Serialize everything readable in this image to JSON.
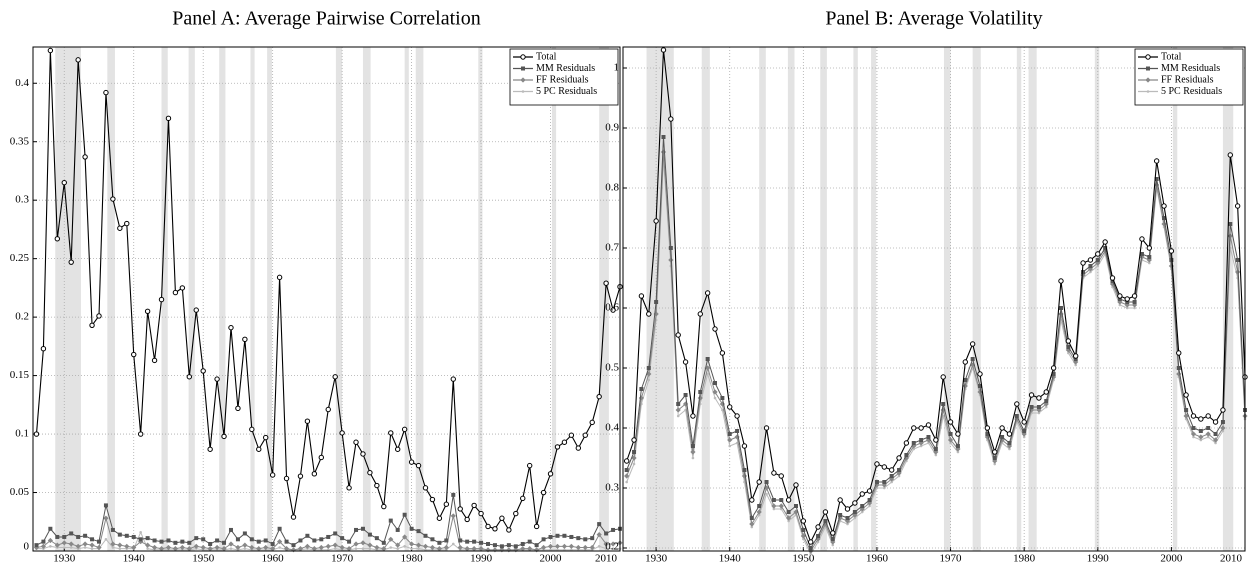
{
  "chart_data": [
    {
      "type": "line",
      "title": "Panel A: Average Pairwise Correlation",
      "x": [
        1926,
        1927,
        1928,
        1929,
        1930,
        1931,
        1932,
        1933,
        1934,
        1935,
        1936,
        1937,
        1938,
        1939,
        1940,
        1941,
        1942,
        1943,
        1944,
        1945,
        1946,
        1947,
        1948,
        1949,
        1950,
        1951,
        1952,
        1953,
        1954,
        1955,
        1956,
        1957,
        1958,
        1959,
        1960,
        1961,
        1962,
        1963,
        1964,
        1965,
        1966,
        1967,
        1968,
        1969,
        1970,
        1971,
        1972,
        1973,
        1974,
        1975,
        1976,
        1977,
        1978,
        1979,
        1980,
        1981,
        1982,
        1983,
        1984,
        1985,
        1986,
        1987,
        1988,
        1989,
        1990,
        1991,
        1992,
        1993,
        1994,
        1995,
        1996,
        1997,
        1998,
        1999,
        2000,
        2001,
        2002,
        2003,
        2004,
        2005,
        2006,
        2007,
        2008,
        2009,
        2010
      ],
      "xlim": [
        1925.5,
        2010
      ],
      "xticks": [
        1930,
        1940,
        1950,
        1960,
        1970,
        1980,
        1990,
        2000,
        2010
      ],
      "ylim": [
        0,
        0.431
      ],
      "yticks": [
        0,
        0.05,
        0.1,
        0.15,
        0.2,
        0.25,
        0.3,
        0.35,
        0.4
      ],
      "grid": true,
      "legend": "upper right",
      "recessions": [
        [
          1928.7,
          1932.4
        ],
        [
          1936.2,
          1937.3
        ],
        [
          1944,
          1944.9
        ],
        [
          1947.9,
          1948.8
        ],
        [
          1952.3,
          1953.2
        ],
        [
          1956.8,
          1957.4
        ],
        [
          1959.2,
          1959.9
        ],
        [
          1969.1,
          1970
        ],
        [
          1973,
          1974.1
        ],
        [
          1979,
          1979.6
        ],
        [
          1980.6,
          1981.7
        ],
        [
          1989.6,
          1990.2
        ],
        [
          2000.2,
          2000.8
        ],
        [
          2007,
          2008.4
        ]
      ],
      "series": [
        {
          "name": "Total",
          "color": "#000000",
          "marker": "circle",
          "values": [
            0.1,
            0.173,
            0.428,
            0.267,
            0.315,
            0.247,
            0.42,
            0.337,
            0.193,
            0.201,
            0.392,
            0.301,
            0.276,
            0.28,
            0.168,
            0.1,
            0.205,
            0.163,
            0.215,
            0.37,
            0.221,
            0.225,
            0.149,
            0.206,
            0.154,
            0.087,
            0.147,
            0.098,
            0.191,
            0.122,
            0.181,
            0.104,
            0.087,
            0.097,
            0.065,
            0.234,
            0.062,
            0.029,
            0.064,
            0.111,
            0.066,
            0.08,
            0.121,
            0.149,
            0.101,
            0.054,
            0.093,
            0.083,
            0.067,
            0.056,
            0.038,
            0.101,
            0.087,
            0.104,
            0.076,
            0.073,
            0.054,
            0.044,
            0.028,
            0.04,
            0.147,
            0.036,
            0.027,
            0.039,
            0.032,
            0.021,
            0.019,
            0.028,
            0.018,
            0.032,
            0.045,
            0.073,
            0.021,
            0.05,
            0.066,
            0.089,
            0.093,
            0.099,
            0.088,
            0.099,
            0.11,
            0.132,
            0.229,
            0.206,
            0.226
          ]
        },
        {
          "name": "MM Residuals",
          "color": "#555555",
          "marker": "square",
          "values": [
            0.005,
            0.008,
            0.019,
            0.012,
            0.012,
            0.015,
            0.012,
            0.013,
            0.01,
            0.008,
            0.039,
            0.018,
            0.014,
            0.013,
            0.012,
            0.01,
            0.011,
            0.009,
            0.008,
            0.009,
            0.007,
            0.008,
            0.007,
            0.011,
            0.01,
            0.006,
            0.009,
            0.007,
            0.018,
            0.01,
            0.015,
            0.01,
            0.008,
            0.009,
            0.006,
            0.019,
            0.008,
            0.005,
            0.009,
            0.013,
            0.009,
            0.01,
            0.012,
            0.015,
            0.011,
            0.008,
            0.018,
            0.019,
            0.014,
            0.011,
            0.007,
            0.026,
            0.018,
            0.031,
            0.019,
            0.017,
            0.013,
            0.01,
            0.007,
            0.009,
            0.048,
            0.009,
            0.008,
            0.008,
            0.007,
            0.006,
            0.005,
            0.004,
            0.005,
            0.004,
            0.006,
            0.008,
            0.005,
            0.01,
            0.012,
            0.013,
            0.013,
            0.012,
            0.011,
            0.01,
            0.011,
            0.023,
            0.015,
            0.018,
            0.019
          ]
        },
        {
          "name": "FF Residuals",
          "color": "#888888",
          "marker": "diamond",
          "values": [
            0.003,
            0.004,
            0.009,
            0.005,
            0.007,
            0.006,
            0.004,
            0.006,
            0.005,
            0.003,
            0.028,
            0.006,
            0.005,
            0.004,
            0.003,
            0.008,
            0.005,
            0.003,
            0.002,
            0.003,
            0.002,
            0.003,
            0.002,
            0.004,
            0.003,
            0.002,
            0.003,
            0.002,
            0.006,
            0.003,
            0.005,
            0.003,
            0.002,
            0.003,
            0.002,
            0.008,
            0.002,
            0.001,
            0.002,
            0.004,
            0.002,
            0.003,
            0.004,
            0.005,
            0.003,
            0.002,
            0.006,
            0.007,
            0.005,
            0.003,
            0.002,
            0.01,
            0.005,
            0.012,
            0.006,
            0.005,
            0.004,
            0.003,
            0.002,
            0.003,
            0.03,
            0.003,
            0.002,
            0.002,
            0.002,
            0.001,
            0.001,
            0.001,
            0.001,
            0.001,
            0.002,
            0.002,
            0.001,
            0.003,
            0.004,
            0.004,
            0.004,
            0.004,
            0.003,
            0.003,
            0.003,
            0.014,
            0.006,
            0.006,
            0.007
          ]
        },
        {
          "name": "5 PC Residuals",
          "color": "#bbbbbb",
          "marker": "point",
          "values": [
            0.002,
            0.002,
            0.004,
            0.003,
            0.003,
            0.003,
            0.002,
            0.003,
            0.002,
            0.002,
            0.01,
            0.003,
            0.002,
            0.002,
            0.002,
            0.016,
            0.002,
            0.001,
            0.001,
            0.001,
            0.001,
            0.001,
            0.001,
            0.002,
            0.001,
            0.001,
            0.001,
            0.001,
            0.002,
            0.001,
            0.002,
            0.001,
            0.001,
            0.001,
            0.001,
            0.003,
            0.001,
            0.001,
            0.001,
            0.002,
            0.001,
            0.001,
            0.001,
            0.002,
            0.001,
            0.001,
            0.002,
            0.002,
            0.002,
            0.001,
            0.001,
            0.003,
            0.002,
            0.004,
            0.002,
            0.002,
            0.001,
            0.001,
            0.001,
            0.001,
            0.006,
            0.001,
            0.001,
            0.001,
            0.001,
            0.001,
            0.001,
            0.001,
            0.001,
            0.001,
            0.001,
            0.001,
            0.001,
            0.001,
            0.001,
            0.001,
            0.001,
            0.001,
            0.001,
            0.001,
            0.001,
            0.004,
            0.002,
            0.002,
            0.002
          ]
        }
      ]
    },
    {
      "type": "line",
      "title": "Panel B: Average Volatility",
      "x": [
        1926,
        1927,
        1928,
        1929,
        1930,
        1931,
        1932,
        1933,
        1934,
        1935,
        1936,
        1937,
        1938,
        1939,
        1940,
        1941,
        1942,
        1943,
        1944,
        1945,
        1946,
        1947,
        1948,
        1949,
        1950,
        1951,
        1952,
        1953,
        1954,
        1955,
        1956,
        1957,
        1958,
        1959,
        1960,
        1961,
        1962,
        1963,
        1964,
        1965,
        1966,
        1967,
        1968,
        1969,
        1970,
        1971,
        1972,
        1973,
        1974,
        1975,
        1976,
        1977,
        1978,
        1979,
        1980,
        1981,
        1982,
        1983,
        1984,
        1985,
        1986,
        1987,
        1988,
        1989,
        1990,
        1991,
        1992,
        1993,
        1994,
        1995,
        1996,
        1997,
        1998,
        1999,
        2000,
        2001,
        2002,
        2003,
        2004,
        2005,
        2006,
        2007,
        2008,
        2009,
        2010
      ],
      "xlim": [
        1925.5,
        2010
      ],
      "xticks": [
        1930,
        1940,
        1950,
        1960,
        1970,
        1980,
        1990,
        2000,
        2010
      ],
      "ylim": [
        0.195,
        1.035
      ],
      "yticks": [
        0.2,
        0.3,
        0.4,
        0.5,
        0.6,
        0.7,
        0.8,
        0.9,
        1
      ],
      "grid": true,
      "legend": "upper right",
      "recessions": [
        [
          1928.7,
          1932.4
        ],
        [
          1936.2,
          1937.3
        ],
        [
          1944,
          1944.9
        ],
        [
          1947.9,
          1948.8
        ],
        [
          1952.3,
          1953.2
        ],
        [
          1956.8,
          1957.4
        ],
        [
          1959.2,
          1959.9
        ],
        [
          1969.1,
          1970
        ],
        [
          1973,
          1974.1
        ],
        [
          1979,
          1979.6
        ],
        [
          1980.6,
          1981.7
        ],
        [
          1989.6,
          1990.2
        ],
        [
          2000.2,
          2000.8
        ],
        [
          2007,
          2008.4
        ]
      ],
      "series": [
        {
          "name": "Total",
          "color": "#000000",
          "marker": "circle",
          "values": [
            0.345,
            0.38,
            0.62,
            0.59,
            0.745,
            1.03,
            0.915,
            0.555,
            0.51,
            0.42,
            0.59,
            0.625,
            0.565,
            0.525,
            0.435,
            0.42,
            0.37,
            0.28,
            0.31,
            0.4,
            0.325,
            0.32,
            0.28,
            0.305,
            0.245,
            0.21,
            0.235,
            0.26,
            0.225,
            0.28,
            0.265,
            0.275,
            0.29,
            0.295,
            0.34,
            0.335,
            0.33,
            0.35,
            0.375,
            0.4,
            0.4,
            0.405,
            0.38,
            0.485,
            0.41,
            0.39,
            0.51,
            0.54,
            0.49,
            0.4,
            0.36,
            0.4,
            0.39,
            0.44,
            0.41,
            0.455,
            0.45,
            0.46,
            0.5,
            0.645,
            0.545,
            0.52,
            0.675,
            0.68,
            0.69,
            0.71,
            0.65,
            0.62,
            0.615,
            0.62,
            0.715,
            0.7,
            0.845,
            0.77,
            0.695,
            0.525,
            0.455,
            0.42,
            0.415,
            0.42,
            0.41,
            0.43,
            0.855,
            0.77,
            0.485
          ]
        },
        {
          "name": "MM Residuals",
          "color": "#555555",
          "marker": "square",
          "values": [
            0.33,
            0.36,
            0.465,
            0.5,
            0.61,
            0.885,
            0.7,
            0.44,
            0.455,
            0.37,
            0.46,
            0.515,
            0.475,
            0.45,
            0.39,
            0.395,
            0.33,
            0.25,
            0.27,
            0.31,
            0.28,
            0.28,
            0.26,
            0.27,
            0.23,
            0.2,
            0.22,
            0.245,
            0.215,
            0.255,
            0.25,
            0.26,
            0.27,
            0.28,
            0.31,
            0.31,
            0.32,
            0.33,
            0.355,
            0.375,
            0.38,
            0.385,
            0.365,
            0.44,
            0.39,
            0.37,
            0.48,
            0.515,
            0.47,
            0.39,
            0.35,
            0.385,
            0.375,
            0.42,
            0.395,
            0.435,
            0.435,
            0.445,
            0.49,
            0.6,
            0.535,
            0.515,
            0.66,
            0.67,
            0.68,
            0.7,
            0.645,
            0.615,
            0.61,
            0.61,
            0.69,
            0.685,
            0.815,
            0.75,
            0.68,
            0.5,
            0.43,
            0.4,
            0.395,
            0.4,
            0.39,
            0.41,
            0.74,
            0.68,
            0.43
          ]
        },
        {
          "name": "FF Residuals",
          "color": "#888888",
          "marker": "diamond",
          "values": [
            0.32,
            0.35,
            0.45,
            0.49,
            0.59,
            0.86,
            0.68,
            0.43,
            0.44,
            0.36,
            0.45,
            0.5,
            0.46,
            0.44,
            0.38,
            0.385,
            0.32,
            0.24,
            0.26,
            0.3,
            0.27,
            0.27,
            0.25,
            0.26,
            0.22,
            0.195,
            0.215,
            0.24,
            0.21,
            0.25,
            0.245,
            0.255,
            0.265,
            0.275,
            0.305,
            0.305,
            0.315,
            0.325,
            0.35,
            0.37,
            0.375,
            0.38,
            0.36,
            0.43,
            0.38,
            0.365,
            0.47,
            0.505,
            0.46,
            0.385,
            0.345,
            0.38,
            0.37,
            0.415,
            0.39,
            0.43,
            0.43,
            0.44,
            0.485,
            0.59,
            0.53,
            0.51,
            0.655,
            0.665,
            0.675,
            0.695,
            0.64,
            0.61,
            0.605,
            0.605,
            0.685,
            0.68,
            0.805,
            0.74,
            0.67,
            0.49,
            0.42,
            0.39,
            0.385,
            0.39,
            0.38,
            0.4,
            0.72,
            0.66,
            0.42
          ]
        },
        {
          "name": "5 PC Residuals",
          "color": "#bbbbbb",
          "marker": "point",
          "values": [
            0.31,
            0.34,
            0.44,
            0.48,
            0.58,
            0.85,
            0.67,
            0.42,
            0.43,
            0.35,
            0.44,
            0.49,
            0.45,
            0.43,
            0.37,
            0.375,
            0.31,
            0.235,
            0.255,
            0.29,
            0.265,
            0.265,
            0.245,
            0.255,
            0.215,
            0.19,
            0.21,
            0.235,
            0.205,
            0.245,
            0.24,
            0.25,
            0.26,
            0.27,
            0.3,
            0.3,
            0.31,
            0.32,
            0.345,
            0.365,
            0.37,
            0.375,
            0.355,
            0.42,
            0.375,
            0.36,
            0.465,
            0.5,
            0.455,
            0.38,
            0.34,
            0.375,
            0.365,
            0.41,
            0.385,
            0.425,
            0.425,
            0.435,
            0.48,
            0.58,
            0.525,
            0.505,
            0.65,
            0.66,
            0.67,
            0.69,
            0.635,
            0.605,
            0.6,
            0.6,
            0.68,
            0.675,
            0.8,
            0.735,
            0.665,
            0.485,
            0.415,
            0.385,
            0.38,
            0.385,
            0.375,
            0.395,
            0.7,
            0.65,
            0.415
          ]
        }
      ]
    }
  ]
}
